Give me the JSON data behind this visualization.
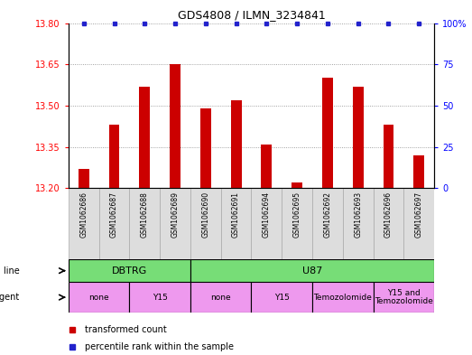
{
  "title": "GDS4808 / ILMN_3234841",
  "samples": [
    "GSM1062686",
    "GSM1062687",
    "GSM1062688",
    "GSM1062689",
    "GSM1062690",
    "GSM1062691",
    "GSM1062694",
    "GSM1062695",
    "GSM1062692",
    "GSM1062693",
    "GSM1062696",
    "GSM1062697"
  ],
  "bar_values": [
    13.27,
    13.43,
    13.57,
    13.65,
    13.49,
    13.52,
    13.36,
    13.22,
    13.6,
    13.57,
    13.43,
    13.32
  ],
  "bar_color": "#cc0000",
  "dot_color": "#2222cc",
  "ylim_left": [
    13.2,
    13.8
  ],
  "ylim_right": [
    0,
    100
  ],
  "yticks_left": [
    13.2,
    13.35,
    13.5,
    13.65,
    13.8
  ],
  "yticks_right": [
    0,
    25,
    50,
    75,
    100
  ],
  "cell_line_color": "#77dd77",
  "agent_color": "#ee99ee",
  "sample_bg_color": "#dddddd",
  "legend_red": "transformed count",
  "legend_blue": "percentile rank within the sample",
  "bar_width": 0.35,
  "grid_color": "#888888",
  "cell_line_defs": [
    {
      "label": "DBTRG",
      "start": 0,
      "end": 4
    },
    {
      "label": "U87",
      "start": 4,
      "end": 12
    }
  ],
  "agent_defs": [
    {
      "label": "none",
      "start": 0,
      "end": 2
    },
    {
      "label": "Y15",
      "start": 2,
      "end": 4
    },
    {
      "label": "none",
      "start": 4,
      "end": 6
    },
    {
      "label": "Y15",
      "start": 6,
      "end": 8
    },
    {
      "label": "Temozolomide",
      "start": 8,
      "end": 10
    },
    {
      "label": "Y15 and\nTemozolomide",
      "start": 10,
      "end": 12
    }
  ]
}
